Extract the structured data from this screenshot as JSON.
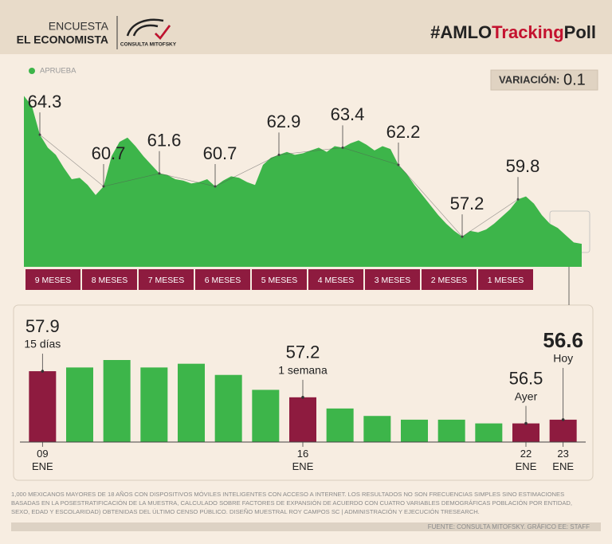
{
  "header": {
    "survey": "ENCUESTA",
    "outlet": "EL ECONOMISTA",
    "logo": "CONSULTA MITOFSKY",
    "hashtag": [
      "#AMLO",
      "Tracking",
      "Poll"
    ]
  },
  "variation": {
    "label": "VARIACIÓN:",
    "value": 0.1
  },
  "chart_data": [
    {
      "type": "area",
      "series": [
        {
          "name": "APRUEBA",
          "color": "#3db54a",
          "values": [
            67.0,
            66.3,
            64.3,
            63.4,
            62.9,
            62.0,
            61.2,
            61.3,
            60.8,
            60.1,
            60.7,
            62.8,
            63.8,
            64.1,
            63.5,
            62.8,
            62.2,
            61.6,
            61.5,
            61.2,
            61.1,
            60.9,
            61.0,
            61.2,
            60.7,
            61.1,
            61.4,
            61.3,
            61.0,
            60.8,
            62.2,
            62.7,
            62.9,
            63.1,
            62.9,
            63.0,
            63.2,
            63.4,
            63.1,
            63.5,
            63.4,
            63.7,
            63.9,
            63.6,
            63.2,
            63.5,
            63.3,
            62.2,
            61.6,
            60.8,
            60.1,
            59.4,
            58.7,
            58.1,
            57.6,
            57.2,
            57.6,
            57.5,
            57.7,
            58.1,
            58.6,
            59.1,
            59.8,
            60.0,
            59.5,
            58.7,
            58.1,
            57.8,
            57.3,
            56.8,
            56.7
          ],
          "value_labels": [
            null,
            null,
            "64.3",
            null,
            null,
            null,
            null,
            null,
            null,
            null,
            "60.7",
            null,
            null,
            null,
            null,
            null,
            null,
            "61.6",
            null,
            null,
            null,
            null,
            null,
            null,
            "60.7",
            null,
            null,
            null,
            null,
            null,
            null,
            null,
            "62.9",
            null,
            null,
            null,
            null,
            null,
            null,
            null,
            "63.4",
            null,
            null,
            null,
            null,
            null,
            null,
            "62.2",
            null,
            null,
            null,
            null,
            null,
            null,
            null,
            "57.2",
            null,
            null,
            null,
            null,
            null,
            null,
            "59.8",
            null,
            null,
            null,
            null,
            null,
            null,
            null,
            null
          ]
        }
      ],
      "ylim": [
        55.1,
        67.3
      ],
      "periods": [
        "9 MESES",
        "8 MESES",
        "7 MESES",
        "6 MESES",
        "5 MESES",
        "4 MESES",
        "3 MESES",
        "2 MESES",
        "1 MESES"
      ],
      "period_color": "#8e1b3f"
    },
    {
      "type": "bar",
      "categories": [
        "09 ENE",
        null,
        null,
        null,
        null,
        null,
        null,
        "16 ENE",
        null,
        null,
        null,
        null,
        null,
        "22 ENE",
        "23 ENE"
      ],
      "values": [
        57.9,
        58.0,
        58.2,
        58.0,
        58.1,
        57.8,
        57.4,
        57.2,
        56.9,
        56.7,
        56.6,
        56.6,
        56.5,
        56.5,
        56.6
      ],
      "notes": [
        "15 días",
        null,
        null,
        null,
        null,
        null,
        null,
        "1 semana",
        null,
        null,
        null,
        null,
        null,
        "Ayer",
        "Hoy"
      ],
      "colors": [
        "#8e1b3f",
        "#3db54a",
        "#3db54a",
        "#3db54a",
        "#3db54a",
        "#3db54a",
        "#3db54a",
        "#8e1b3f",
        "#3db54a",
        "#3db54a",
        "#3db54a",
        "#3db54a",
        "#3db54a",
        "#8e1b3f",
        "#8e1b3f"
      ],
      "ylim": [
        56,
        58.2
      ]
    }
  ],
  "footer": {
    "methodology": "1,000 MEXICANOS MAYORES DE 18 AÑOS CON DISPOSITIVOS MÓVILES INTELIGENTES CON ACCESO A INTERNET. LOS RESULTADOS NO SON FRECUENCIAS SIMPLES SINO ESTIMACIONES BASADAS EN LA POSESTRATIFICACIÓN DE LA MUESTRA, CALCULADO SOBRE FACTORES DE EXPANSIÓN DE ACUERDO CON CUATRO VARIABLES DEMOGRÁFICAS POBLACIÓN POR ENTIDAD, SEXO, EDAD Y ESCOLARIDAD) OBTENIDAS DEL ÚLTIMO CENSO PÚBLICO. DISEÑO MUESTRAL ROY CAMPOS SC | ADMINISTRACIÓN Y EJECUCIÓN TRESEARCH.",
    "source": "FUENTE: CONSULTA MITOFSKY. GRÁFICO EE: STAFF"
  }
}
